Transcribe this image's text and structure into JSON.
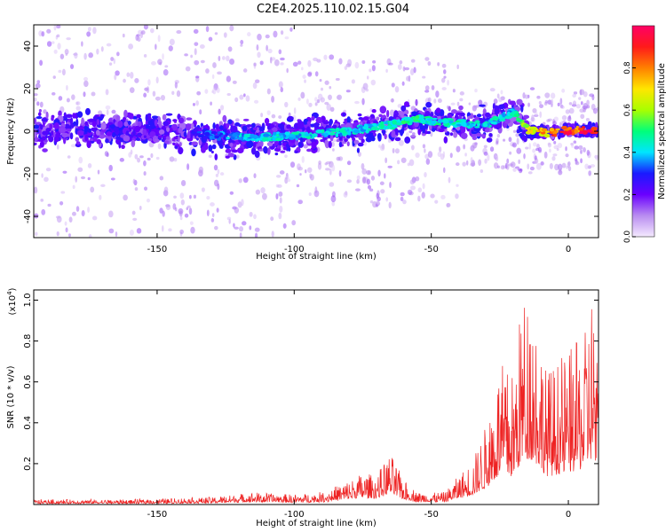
{
  "title": "C2E4.2025.110.02.15.G04",
  "chart_data": [
    {
      "type": "heatmap",
      "xlabel": "Height of straight line (km)",
      "ylabel": "Frequency (Hz)",
      "xlim": [
        -195,
        11
      ],
      "ylim": [
        -50,
        50
      ],
      "x_ticks": [
        -150,
        -100,
        -50,
        0
      ],
      "y_ticks": [
        -40,
        -20,
        0,
        20,
        40
      ],
      "colorbar": {
        "label": "Normalized spectral amplitude",
        "range": [
          0,
          1
        ],
        "ticks": [
          0.0,
          0.2,
          0.4,
          0.6,
          0.8
        ],
        "colors": [
          "#f4eafe",
          "#b98cf0",
          "#6a00ff",
          "#1a1aff",
          "#00e5ff",
          "#00ff7a",
          "#a8ff00",
          "#ffe600",
          "#ff8000",
          "#ff1a1a",
          "#ff0066"
        ]
      },
      "ridge": [
        {
          "x": -195,
          "f": 0.5,
          "amp": 0.28
        },
        {
          "x": -150,
          "f": 0.5,
          "amp": 0.3
        },
        {
          "x": -130,
          "f": -2.0,
          "amp": 0.35
        },
        {
          "x": -115,
          "f": -3.0,
          "amp": 0.45
        },
        {
          "x": -100,
          "f": -2.0,
          "amp": 0.45
        },
        {
          "x": -80,
          "f": 0.0,
          "amp": 0.45
        },
        {
          "x": -65,
          "f": 3.0,
          "amp": 0.5
        },
        {
          "x": -55,
          "f": 6.0,
          "amp": 0.5
        },
        {
          "x": -45,
          "f": 4.0,
          "amp": 0.5
        },
        {
          "x": -30,
          "f": 3.0,
          "amp": 0.45
        },
        {
          "x": -20,
          "f": 9.0,
          "amp": 0.45
        },
        {
          "x": -15,
          "f": 0.5,
          "amp": 0.7
        },
        {
          "x": -8,
          "f": -1.0,
          "amp": 0.85
        },
        {
          "x": 0,
          "f": 0.5,
          "amp": 0.95
        },
        {
          "x": 10,
          "f": 0.5,
          "amp": 0.95
        }
      ]
    },
    {
      "type": "line",
      "xlabel": "Height of straight line (km)",
      "ylabel": "SNR (10 * v/v)",
      "scale_label": "(x10",
      "scale_exp": "4",
      "scale_close": ")",
      "xlim": [
        -195,
        11
      ],
      "ylim": [
        0,
        1.05
      ],
      "x_ticks": [
        -150,
        -100,
        -50,
        0
      ],
      "y_ticks": [
        0.2,
        0.4,
        0.6,
        0.8,
        1.0
      ],
      "color": "#ee2222",
      "envelope": [
        {
          "x": -195,
          "y": 0.02
        },
        {
          "x": -160,
          "y": 0.02
        },
        {
          "x": -145,
          "y": 0.025
        },
        {
          "x": -130,
          "y": 0.03
        },
        {
          "x": -115,
          "y": 0.05
        },
        {
          "x": -100,
          "y": 0.04
        },
        {
          "x": -90,
          "y": 0.05
        },
        {
          "x": -80,
          "y": 0.1
        },
        {
          "x": -75,
          "y": 0.13
        },
        {
          "x": -70,
          "y": 0.12
        },
        {
          "x": -65,
          "y": 0.21
        },
        {
          "x": -60,
          "y": 0.1
        },
        {
          "x": -55,
          "y": 0.05
        },
        {
          "x": -45,
          "y": 0.05
        },
        {
          "x": -40,
          "y": 0.12
        },
        {
          "x": -35,
          "y": 0.18
        },
        {
          "x": -30,
          "y": 0.33
        },
        {
          "x": -25,
          "y": 0.58
        },
        {
          "x": -20,
          "y": 0.55
        },
        {
          "x": -17,
          "y": 0.85
        },
        {
          "x": -14,
          "y": 0.9
        },
        {
          "x": -11,
          "y": 0.78
        },
        {
          "x": -8,
          "y": 0.55
        },
        {
          "x": -3,
          "y": 0.6
        },
        {
          "x": 2,
          "y": 0.65
        },
        {
          "x": 6,
          "y": 0.7
        },
        {
          "x": 9,
          "y": 0.95
        },
        {
          "x": 11,
          "y": 0.5
        }
      ]
    }
  ]
}
